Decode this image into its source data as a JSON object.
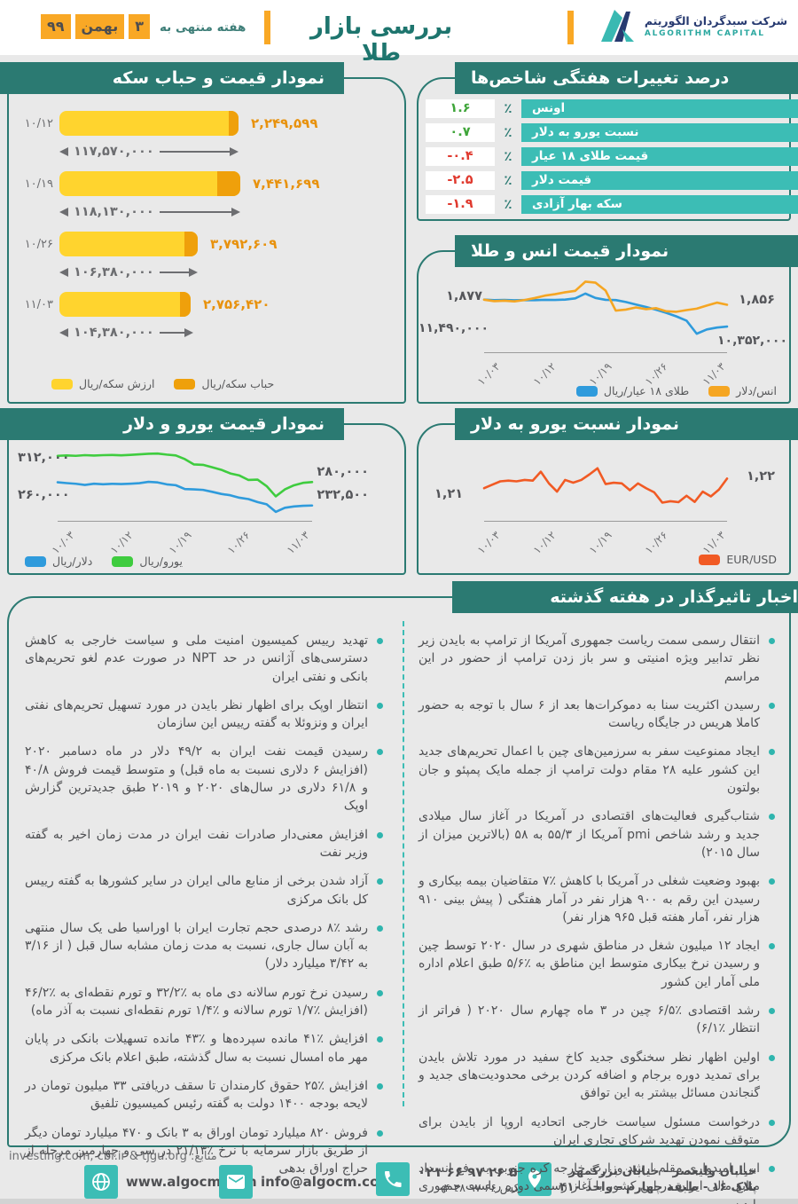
{
  "colors": {
    "teal_dark": "#2B7A72",
    "teal_light": "#3CBDB5",
    "orange": "#F9A825",
    "yellow_bar": "#FFD42E",
    "bubble_orange": "#EFA00B",
    "value_orange": "#E8920E",
    "green": "#3FA53A",
    "red": "#E03A2F",
    "line_blue": "#2F9BDC",
    "line_orange": "#F5A623",
    "line_green": "#3FCC3F",
    "line_red": "#F15A24"
  },
  "header": {
    "title": "بررسی بازار طلا",
    "week_label": "هفته منتهی به",
    "date_day": "۳",
    "date_month": "بهمن",
    "date_year": "۹۹",
    "brand_fa": "شرکت سبدگردان الگوریتم",
    "brand_en": "ALGORITHM CAPITAL"
  },
  "weekly": {
    "title": "درصد تغییرات هفتگی شاخص‌ها",
    "percent": "٪",
    "rows": [
      {
        "label": "اونس",
        "value": "۱.۶",
        "trend": "up"
      },
      {
        "label": "نسبت یورو به دلار",
        "value": "۰.۷",
        "trend": "up"
      },
      {
        "label": "قیمت طلای ۱۸ عیار",
        "value": "-۰.۴",
        "trend": "down"
      },
      {
        "label": "قیمت دلار",
        "value": "-۲.۵",
        "trend": "down"
      },
      {
        "label": "سکه بهار آزادی",
        "value": "-۱.۹",
        "trend": "down"
      }
    ]
  },
  "coin": {
    "title": "نمودار قیمت و حباب سکه",
    "rows": [
      {
        "date": "۱۰/۱۲",
        "bubble_label": "۲,۲۴۹,۵۹۹",
        "price_label": "۱۱۷,۵۷۰,۰۰۰"
      },
      {
        "date": "۱۰/۱۹",
        "bubble_label": "۷,۴۴۱,۶۹۹",
        "price_label": "۱۱۸,۱۳۰,۰۰۰"
      },
      {
        "date": "۱۰/۲۶",
        "bubble_label": "۳,۷۹۲,۶۰۹",
        "price_label": "۱۰۶,۳۸۰,۰۰۰"
      },
      {
        "date": "۱۱/۰۳",
        "bubble_label": "۲,۷۵۶,۴۲۰",
        "price_label": "۱۰۴,۳۸۰,۰۰۰"
      }
    ],
    "legend": [
      {
        "label": "ارزش سکه/ریال",
        "color": "#FFD42E"
      },
      {
        "label": "حباب سکه/ریال",
        "color": "#EFA00B"
      }
    ]
  },
  "ounce": {
    "title": "نمودار قیمت انس و طلا",
    "start_top": "۱,۸۷۷",
    "start_bottom": "۱۱,۴۹۰,۰۰۰",
    "end_top": "۱,۸۵۶",
    "end_bottom": "۱۰,۳۵۲,۰۰۰",
    "ticks": [
      "۱۰/۰۳",
      "۱۰/۱۲",
      "۱۰/۱۹",
      "۱۰/۲۶",
      "۱۱/۰۳"
    ],
    "legend": [
      {
        "label": "طلای ۱۸ عیار/ریال",
        "color": "#2F9BDC"
      },
      {
        "label": "انس/دلار",
        "color": "#F5A623"
      }
    ]
  },
  "euro": {
    "title": "نمودار قیمت یورو و دلار",
    "start_top": "۳۱۲,۰۰۰",
    "start_bottom": "۲۶۰,۰۰۰",
    "end_top": "۲۸۰,۰۰۰",
    "end_bottom": "۲۳۲,۵۰۰",
    "ticks": [
      "۱۰/۰۳",
      "۱۰/۱۲",
      "۱۰/۱۹",
      "۱۰/۲۶",
      "۱۱/۰۳"
    ],
    "legend": [
      {
        "label": "دلار/ریال",
        "color": "#2F9BDC"
      },
      {
        "label": "یورو/ریال",
        "color": "#3FCC3F"
      }
    ]
  },
  "eurusd": {
    "title": "نمودار نسبت یورو به دلار",
    "start": "۱,۲۱",
    "end": "۱,۲۲",
    "ticks": [
      "۱۰/۰۳",
      "۱۰/۱۲",
      "۱۰/۱۹",
      "۱۰/۲۶",
      "۱۱/۰۳"
    ],
    "legend": [
      {
        "label": "EUR/USD",
        "color": "#F15A24"
      }
    ]
  },
  "news": {
    "title": "اخبار تاثیرگذار در هفته گذشته",
    "world_items": [
      "انتقال رسمی سمت ریاست جمهوری آمریکا از ترامپ به بایدن زیر نظر تدابیر ویژه امنیتی و سر باز زدن ترامپ از حضور در این مراسم",
      "رسیدن اکثریت سنا به دموکرات‌ها بعد از ۶ سال با توجه به حضور کاملا هریس در جایگاه ریاست",
      "ایجاد ممنوعیت سفر به سرزمین‌های چین با اعمال تحریم‌های جدید این کشور علیه ۲۸ مقام دولت ترامپ از جمله مایک پمپئو و جان بولتون",
      "شتاب‌گیری فعالیت‌های اقتصادی در آمریکا در آغاز سال میلادی جدید و رشد شاخص pmi آمریکا از ۵۵/۳ به ۵۸ (بالاترین میزان از سال ۲۰۱۵)",
      "بهبود وضعیت شغلی در آمریکا با کاهش ٪۷ متقاضیان بیمه بیکاری و رسیدن این رقم به ۹۰۰ هزار نفر در آمار هفتگی ( پیش بینی ۹۱۰ هزار نفر، آمار هفته قبل ۹۶۵ هزار نفر)",
      "ایجاد ۱۲ میلیون شغل در مناطق شهری در سال ۲۰۲۰ توسط چین و رسیدن نرخ بیکاری متوسط این مناطق به ٪۵/۶ طبق اعلام اداره ملی آمار این کشور",
      "رشد اقتصادی ٪۶/۵ چین در ۳ ماه چهارم سال ۲۰۲۰ ( فراتر از انتظار ٪۶/۱)",
      "اولین اظهار نظر سخنگوی جدید کاخ سفید در مورد تلاش بایدن برای تمدید دوره برجام و اضافه کردن برخی محدودیت‌های جدید و گنجاندن مسائل بیشتر به این توافق",
      "درخواست مسئول سیاست خارجی اتحادیه اروپا از بایدن برای متوقف نمودن تهدید شرکای تجاری ایران",
      "ابراز امیدواری مقام ارشد وزارت خارجه کره جنوبی به رفع انسداد منابع مالی ایران در این کشور با آغاز رسمی دوره ریاست جمهوری بایدن"
    ],
    "iran_items": [
      "تهدید رییس کمیسیون امنیت ملی و سیاست خارجی به کاهش دسترسی‌های آژانس در حد NPT در صورت عدم لغو تحریم‌های بانکی و نفتی ایران",
      "انتظار اوپک برای اظهار نظر بایدن در مورد تسهیل تحریم‌های نفتی ایران و ونزوئلا به گفته رییس این سازمان",
      "رسیدن قیمت نفت ایران به ۴۹/۲ دلار در ماه دسامبر ۲۰۲۰ (افزایش ۶ دلاری نسبت به ماه قبل) و متوسط قیمت فروش ۴۰/۸ و ۶۱/۸ دلاری در سال‌های ۲۰۲۰ و ۲۰۱۹ طبق جدیدترین گزارش اوپک",
      "افزایش معنی‌دار صادرات نفت ایران در مدت زمان اخیر به گفته وزیر نفت",
      "آزاد شدن برخی از منابع مالی ایران در سایر کشورها به گفته رییس کل بانک مرکزی",
      "رشد ٪۸ درصدی حجم تجارت ایران با اوراسیا طی یک سال منتهی به آبان سال جاری، نسبت به مدت زمان مشابه سال قبل ( از ۳/۱۶ به ۳/۴۲ میلیارد دلار)",
      "رسیدن نرخ تورم سالانه دی ماه به ٪۳۲/۲ و تورم نقطه‌ای به ٪۴۶/۲ (افزایش ٪۱/۷ تورم سالانه و ٪۱/۴ تورم نقطه‌ای نسبت به آذر ماه)",
      "افزایش ٪۴۱ مانده سپرده‌ها و ٪۴۳ مانده تسهیلات بانکی در پایان مهر ماه امسال نسبت به سال گذشته، طبق اعلام بانک مرکزی",
      "افزایش ٪۲۵ حقوق کارمندان تا سقف دریافتی ۳۳ میلیون تومان در لایحه بودجه ۱۴۰۰ دولت به گفته رئیس کمیسیون تلفیق",
      "فروش ۸۲۰  میلیارد تومان اوراق به ۳ بانک و ۴۷۰ میلیارد تومان دیگر از طریق بازار سرمایه با نرخ ٪۲۱/۱۳ در سی و چهارمین مرحله از حراج اوراق بدهی"
    ]
  },
  "footer": {
    "sources": "منابع: investing.com, cbi.ir & tjgu.org",
    "website": "www.algocm.com",
    "email": "info@algocm.com",
    "phone": "۰۲۱ ۶۶ ۹۷ ۲۶ ۵۵",
    "fax": "فکس ۶۶ ۹۷ ۲۸ ۰۴",
    "address1": "خیابان ولیعصر - خیابان بزرگمهر",
    "address2": "پلاک ۱۶ - طبقه چهارم - واحد ۴۱۰"
  },
  "chart_data": [
    {
      "id": "coin_price_bubble",
      "type": "bar",
      "title": "نمودار قیمت و حباب سکه",
      "categories": [
        "۱۰/۱۲",
        "۱۰/۱۹",
        "۱۰/۲۶",
        "۱۱/۰۳"
      ],
      "series": [
        {
          "name": "قیمت سکه (ریال)",
          "values": [
            117570000,
            118130000,
            106380000,
            104380000
          ]
        },
        {
          "name": "حباب سکه (ریال)",
          "values": [
            2249599,
            7441699,
            3792609,
            2756420
          ]
        }
      ]
    },
    {
      "id": "ounce_gold",
      "type": "line",
      "title": "نمودار قیمت انس و طلا",
      "x_ticks": [
        "۱۰/۰۳",
        "۱۰/۱۲",
        "۱۰/۱۹",
        "۱۰/۲۶",
        "۱۱/۰۳"
      ],
      "series": [
        {
          "name": "انس/دلار",
          "start": 1877,
          "end": 1856,
          "ylim": [
            1820,
            1960
          ],
          "values": [
            1877,
            1871,
            1873,
            1870,
            1876,
            1884,
            1894,
            1900,
            1908,
            1914,
            1952,
            1948,
            1915,
            1832,
            1836,
            1845,
            1838,
            1842,
            1829,
            1827,
            1834,
            1840,
            1853,
            1865,
            1856
          ]
        },
        {
          "name": "طلای ۱۸ عیار/ریال",
          "start": 11490000,
          "end": 10352000,
          "ylim": [
            10000000,
            11800000
          ],
          "values": [
            11490000,
            11465000,
            11475000,
            11460000,
            11470000,
            11465000,
            11480000,
            11475000,
            11490000,
            11540000,
            11745000,
            11560000,
            11480000,
            11470000,
            11390000,
            11280000,
            11180000,
            11060000,
            10930000,
            10780000,
            10600000,
            10050000,
            10230000,
            10310000,
            10352000
          ]
        }
      ]
    },
    {
      "id": "euro_dollar",
      "type": "line",
      "title": "نمودار قیمت یورو و دلار",
      "x_ticks": [
        "۱۰/۰۳",
        "۱۰/۱۲",
        "۱۰/۱۹",
        "۱۰/۲۶",
        "۱۱/۰۳"
      ],
      "series": [
        {
          "name": "یورو/ریال",
          "start": 312000,
          "end": 280000,
          "ylim": [
            255000,
            318000
          ],
          "values": [
            312000,
            312500,
            312000,
            312800,
            312300,
            312800,
            313000,
            312600,
            313200,
            313800,
            314500,
            314800,
            313500,
            312500,
            308000,
            301500,
            301000,
            298000,
            295000,
            290500,
            288000,
            282500,
            283000,
            275000,
            262500,
            271000,
            276000,
            279000,
            280000
          ]
        },
        {
          "name": "دلار/ریال",
          "start": 260000,
          "end": 232500,
          "ylim": [
            220000,
            265000
          ],
          "values": [
            260000,
            259000,
            258200,
            256800,
            258300,
            257600,
            258100,
            257900,
            258300,
            258900,
            260500,
            259800,
            257500,
            256500,
            252000,
            251600,
            251000,
            248700,
            246200,
            244600,
            241700,
            240100,
            236600,
            233900,
            225000,
            229800,
            231400,
            232200,
            232500
          ]
        }
      ]
    },
    {
      "id": "eur_usd",
      "type": "line",
      "title": "نمودار نسبت یورو به دلار",
      "x_ticks": [
        "۱۰/۰۳",
        "۱۰/۱۲",
        "۱۰/۱۹",
        "۱۰/۲۶",
        "۱۱/۰۳"
      ],
      "series": [
        {
          "name": "EUR/USD",
          "start": 1.21,
          "end": 1.22,
          "ylim": [
            1.195,
            1.23
          ],
          "values": [
            1.21,
            1.2125,
            1.215,
            1.2155,
            1.215,
            1.216,
            1.2155,
            1.222,
            1.2135,
            1.2075,
            1.216,
            1.214,
            1.216,
            1.22,
            1.2245,
            1.213,
            1.214,
            1.2135,
            1.2085,
            1.2135,
            1.21,
            1.207,
            1.1995,
            1.2005,
            1.1998,
            1.2045,
            1.2,
            1.2075,
            1.204,
            1.209,
            1.217
          ]
        }
      ]
    }
  ]
}
